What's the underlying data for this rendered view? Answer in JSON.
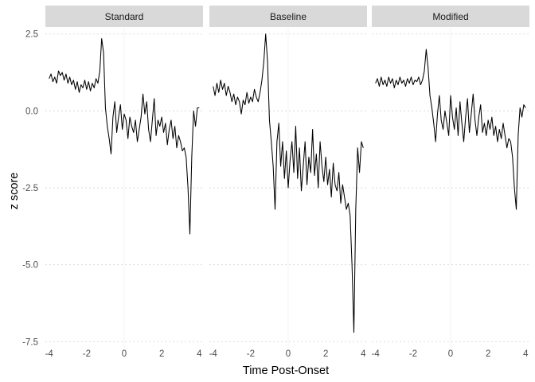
{
  "chart_data": {
    "type": "line",
    "xlabel": "Time Post-Onset",
    "ylabel": "z score",
    "xlim": [
      -4.2,
      4.2
    ],
    "ylim": [
      -7.7,
      2.7
    ],
    "x_ticks": [
      -4,
      -2,
      0,
      2,
      4
    ],
    "x_tick_labels": [
      "-4",
      "-2",
      "0",
      "2",
      "4"
    ],
    "y_ticks": [
      2.5,
      0,
      -2.5,
      -5,
      -7.5
    ],
    "y_tick_labels": [
      "2.5",
      "0.0",
      "-2.5",
      "-5.0",
      "-7.5"
    ],
    "grid": true,
    "legend": "none",
    "facets": [
      {
        "title": "Standard",
        "series": [
          {
            "x": [
              -4.0,
              -3.9,
              -3.8,
              -3.7,
              -3.6,
              -3.5,
              -3.4,
              -3.3,
              -3.2,
              -3.1,
              -3.0,
              -2.9,
              -2.8,
              -2.7,
              -2.6,
              -2.5,
              -2.4,
              -2.3,
              -2.2,
              -2.1,
              -2.0,
              -1.9,
              -1.8,
              -1.7,
              -1.6,
              -1.5,
              -1.4,
              -1.3,
              -1.2,
              -1.1,
              -1.0,
              -0.9,
              -0.8,
              -0.7,
              -0.6,
              -0.5,
              -0.4,
              -0.3,
              -0.2,
              -0.1,
              0.0,
              0.1,
              0.2,
              0.3,
              0.4,
              0.5,
              0.6,
              0.7,
              0.8,
              0.9,
              1.0,
              1.1,
              1.2,
              1.3,
              1.4,
              1.5,
              1.6,
              1.7,
              1.8,
              1.9,
              2.0,
              2.1,
              2.2,
              2.3,
              2.4,
              2.5,
              2.6,
              2.7,
              2.8,
              2.9,
              3.0,
              3.1,
              3.2,
              3.3,
              3.4,
              3.5,
              3.6,
              3.7,
              3.8,
              3.9,
              4.0
            ],
            "y": [
              1.05,
              1.2,
              0.95,
              1.1,
              0.9,
              1.3,
              1.15,
              1.25,
              1.0,
              1.2,
              0.9,
              1.1,
              0.85,
              1.0,
              0.7,
              0.95,
              0.6,
              0.85,
              0.75,
              1.0,
              0.7,
              0.95,
              0.65,
              0.9,
              0.75,
              1.05,
              0.9,
              1.3,
              2.35,
              1.9,
              0.1,
              -0.5,
              -0.9,
              -1.4,
              -0.2,
              0.3,
              -0.7,
              -0.2,
              0.2,
              -0.6,
              -0.1,
              -0.3,
              -0.9,
              -0.2,
              -0.5,
              -0.7,
              -0.3,
              -1.0,
              -0.6,
              -0.2,
              0.55,
              -0.1,
              0.3,
              -0.6,
              -1.0,
              -0.3,
              0.4,
              -0.8,
              -0.3,
              -0.5,
              -0.2,
              -0.7,
              -0.4,
              -1.1,
              -0.6,
              -0.3,
              -0.9,
              -0.5,
              -1.2,
              -0.8,
              -1.0,
              -1.3,
              -1.2,
              -1.5,
              -2.5,
              -4.0,
              -1.5,
              0.0,
              -0.5,
              0.1,
              0.1
            ]
          }
        ]
      },
      {
        "title": "Baseline",
        "series": [
          {
            "x": [
              -4.0,
              -3.9,
              -3.8,
              -3.7,
              -3.6,
              -3.5,
              -3.4,
              -3.3,
              -3.2,
              -3.1,
              -3.0,
              -2.9,
              -2.8,
              -2.7,
              -2.6,
              -2.5,
              -2.4,
              -2.3,
              -2.2,
              -2.1,
              -2.0,
              -1.9,
              -1.8,
              -1.7,
              -1.6,
              -1.5,
              -1.4,
              -1.3,
              -1.2,
              -1.1,
              -1.0,
              -0.9,
              -0.8,
              -0.7,
              -0.6,
              -0.5,
              -0.4,
              -0.3,
              -0.2,
              -0.1,
              0.0,
              0.1,
              0.2,
              0.3,
              0.4,
              0.5,
              0.6,
              0.7,
              0.8,
              0.9,
              1.0,
              1.1,
              1.2,
              1.3,
              1.4,
              1.5,
              1.6,
              1.7,
              1.8,
              1.9,
              2.0,
              2.1,
              2.2,
              2.3,
              2.4,
              2.5,
              2.6,
              2.7,
              2.8,
              2.9,
              3.0,
              3.1,
              3.2,
              3.3,
              3.4,
              3.5,
              3.6,
              3.7,
              3.8,
              3.9,
              4.0
            ],
            "y": [
              0.8,
              0.5,
              0.9,
              0.6,
              1.0,
              0.7,
              0.9,
              0.5,
              0.8,
              0.6,
              0.3,
              0.55,
              0.2,
              0.45,
              0.3,
              -0.1,
              0.35,
              0.2,
              0.6,
              0.25,
              0.45,
              0.3,
              0.7,
              0.45,
              0.3,
              0.6,
              1.0,
              1.6,
              2.5,
              1.6,
              -0.3,
              -1.0,
              -1.8,
              -3.2,
              -1.0,
              -0.4,
              -1.8,
              -1.0,
              -2.2,
              -1.3,
              -2.5,
              -1.6,
              -1.0,
              -2.0,
              -0.5,
              -2.2,
              -1.2,
              -2.6,
              -1.8,
              -1.0,
              -2.4,
              -1.5,
              -2.0,
              -0.6,
              -2.1,
              -1.4,
              -2.5,
              -1.0,
              -1.8,
              -2.3,
              -1.5,
              -2.4,
              -1.9,
              -2.8,
              -1.7,
              -2.4,
              -2.6,
              -2.0,
              -3.0,
              -2.4,
              -2.8,
              -3.2,
              -3.0,
              -3.4,
              -5.0,
              -7.2,
              -3.2,
              -1.2,
              -2.0,
              -1.0,
              -1.2
            ]
          }
        ]
      },
      {
        "title": "Modified",
        "series": [
          {
            "x": [
              -4.0,
              -3.9,
              -3.8,
              -3.7,
              -3.6,
              -3.5,
              -3.4,
              -3.3,
              -3.2,
              -3.1,
              -3.0,
              -2.9,
              -2.8,
              -2.7,
              -2.6,
              -2.5,
              -2.4,
              -2.3,
              -2.2,
              -2.1,
              -2.0,
              -1.9,
              -1.8,
              -1.7,
              -1.6,
              -1.5,
              -1.4,
              -1.3,
              -1.2,
              -1.1,
              -1.0,
              -0.9,
              -0.8,
              -0.7,
              -0.6,
              -0.5,
              -0.4,
              -0.3,
              -0.2,
              -0.1,
              0.0,
              0.1,
              0.2,
              0.3,
              0.4,
              0.5,
              0.6,
              0.7,
              0.8,
              0.9,
              1.0,
              1.1,
              1.2,
              1.3,
              1.4,
              1.5,
              1.6,
              1.7,
              1.8,
              1.9,
              2.0,
              2.1,
              2.2,
              2.3,
              2.4,
              2.5,
              2.6,
              2.7,
              2.8,
              2.9,
              3.0,
              3.1,
              3.2,
              3.3,
              3.4,
              3.5,
              3.6,
              3.7,
              3.8,
              3.9,
              4.0
            ],
            "y": [
              0.9,
              1.05,
              0.8,
              1.1,
              0.85,
              1.0,
              0.8,
              1.1,
              0.9,
              1.05,
              0.75,
              1.0,
              0.85,
              1.1,
              0.9,
              1.0,
              0.8,
              1.05,
              0.9,
              1.1,
              0.85,
              1.0,
              0.95,
              1.1,
              0.85,
              1.0,
              1.3,
              2.0,
              1.4,
              0.5,
              0.1,
              -0.4,
              -1.0,
              -0.1,
              0.5,
              -0.3,
              -0.6,
              0.0,
              -0.4,
              -0.8,
              0.5,
              -0.2,
              -0.6,
              0.1,
              -0.8,
              0.3,
              -0.4,
              -1.0,
              -0.2,
              0.4,
              -0.7,
              -0.1,
              0.55,
              -0.3,
              -0.8,
              -0.2,
              0.2,
              -0.7,
              -0.4,
              -0.8,
              -0.3,
              -0.6,
              -0.2,
              -0.8,
              -0.5,
              -1.0,
              -0.6,
              -0.9,
              -0.4,
              -0.8,
              -1.2,
              -0.9,
              -1.0,
              -1.5,
              -2.5,
              -3.2,
              -0.8,
              0.1,
              -0.2,
              0.2,
              0.1
            ]
          }
        ]
      }
    ]
  }
}
